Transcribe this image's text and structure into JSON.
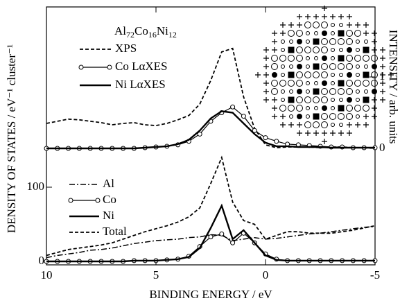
{
  "chart_data": {
    "type": "line",
    "annotation": [
      "Al",
      "72",
      "Co",
      "16",
      "Ni",
      "12"
    ],
    "xlabel": "BINDING ENERGY / eV",
    "ylabel": "DENSITY OF STATES / eV⁻¹ cluster⁻¹",
    "y2label": "INTENSITY / arb. units",
    "xlim": [
      10,
      -5
    ],
    "xticks": [
      10,
      5,
      0,
      -5
    ],
    "ylim": [
      -4.7,
      343
    ],
    "yticks": [
      0,
      100
    ],
    "y2lim": [
      -1.63,
      1.98
    ],
    "y2ticks": [
      0,
      1
    ],
    "x": [
      10,
      9.5,
      9,
      8.5,
      8,
      7.5,
      7,
      6.5,
      6,
      5.5,
      5,
      4.5,
      4,
      3.5,
      3,
      2.5,
      2,
      1.5,
      1,
      0.5,
      0,
      -0.5,
      -1,
      -1.5,
      -2,
      -2.5,
      -3,
      -3.5,
      -4,
      -4.5,
      -5
    ],
    "series": [
      {
        "name": "XPS",
        "color": "#000",
        "style": "dashed",
        "marker": "none",
        "axis": "y2",
        "values": [
          0.35,
          0.38,
          0.41,
          0.4,
          0.38,
          0.36,
          0.33,
          0.35,
          0.36,
          0.33,
          0.32,
          0.35,
          0.4,
          0.46,
          0.62,
          0.95,
          1.35,
          1.4,
          0.72,
          0.28,
          0.05,
          0.01,
          0.02,
          0.02,
          0.02,
          0.01,
          0.02,
          0.02,
          0.01,
          0.01,
          0.01
        ]
      },
      {
        "name": "Co LαXES",
        "color": "#000",
        "style": "solid",
        "marker": "circle",
        "axis": "y2",
        "values": [
          0,
          0,
          0,
          0,
          0,
          0,
          0,
          0,
          0,
          0.01,
          0.02,
          0.03,
          0.05,
          0.1,
          0.2,
          0.38,
          0.5,
          0.58,
          0.45,
          0.25,
          0.15,
          0.1,
          0.06,
          0.05,
          0.04,
          0.03,
          0.02,
          0.02,
          0.01,
          0.01,
          0.01
        ]
      },
      {
        "name": "Ni LαXES",
        "color": "#000",
        "style": "thick",
        "marker": "none",
        "axis": "y2",
        "values": [
          0,
          0,
          0,
          0,
          0,
          0,
          0,
          0,
          0,
          0.01,
          0.02,
          0.03,
          0.06,
          0.12,
          0.25,
          0.42,
          0.52,
          0.5,
          0.35,
          0.2,
          0.08,
          0.03,
          0.03,
          0.02,
          0.02,
          0.02,
          0.01,
          0.01,
          0.01,
          0.01,
          0.01
        ]
      },
      {
        "name": "Al",
        "color": "#000",
        "style": "dashdot",
        "marker": "none",
        "values": [
          5,
          8,
          10,
          12,
          15,
          16,
          18,
          21,
          24,
          26,
          28,
          29,
          30,
          32,
          33,
          36,
          35,
          28,
          30,
          32,
          30,
          31,
          33,
          35,
          37,
          38,
          40,
          42,
          44,
          46,
          47
        ]
      },
      {
        "name": "Co",
        "color": "#000",
        "style": "solid",
        "marker": "circle",
        "values": [
          0,
          0,
          0,
          0,
          0,
          0,
          0,
          0,
          1,
          1,
          1,
          2,
          3,
          7,
          20,
          33,
          37,
          25,
          38,
          25,
          10,
          3,
          1,
          1,
          1,
          1,
          1,
          1,
          1,
          1,
          1
        ]
      },
      {
        "name": "Ni",
        "color": "#000",
        "style": "thick",
        "marker": "none",
        "values": [
          0,
          0,
          0,
          0,
          0,
          0,
          0,
          0,
          1,
          1,
          1,
          2,
          3,
          6,
          18,
          45,
          75,
          30,
          42,
          25,
          8,
          2,
          1,
          1,
          1,
          1,
          1,
          1,
          1,
          1,
          1
        ]
      },
      {
        "name": "Total",
        "color": "#000",
        "style": "dashed",
        "marker": "none",
        "values": [
          8,
          12,
          16,
          18,
          20,
          22,
          25,
          30,
          35,
          40,
          44,
          48,
          53,
          60,
          72,
          105,
          140,
          80,
          55,
          50,
          30,
          35,
          40,
          40,
          38,
          38,
          38,
          40,
          42,
          45,
          48
        ]
      }
    ]
  }
}
